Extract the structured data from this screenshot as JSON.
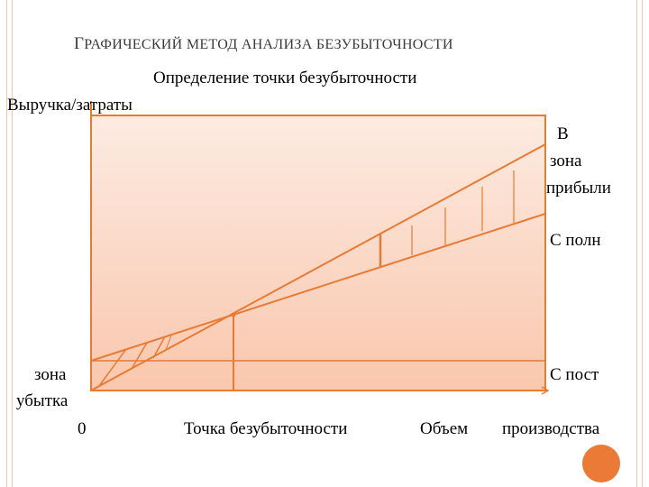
{
  "header": {
    "title": "Графический метод анализа безубыточности",
    "subtitle": "Определение точки безубыточности"
  },
  "labels": {
    "y_axis": "Выручка/затраты",
    "revenue_line": "В",
    "profit_zone_word": "зона",
    "profit_zone_name": "прибыли",
    "total_cost": "С полн",
    "fixed_cost": "С пост",
    "loss_zone_word": "зона",
    "loss_zone_name": "убытка",
    "origin": "0",
    "break_even_point": "Точка безубыточности",
    "x_axis_word1": "Объем",
    "x_axis_word2": "производства"
  },
  "colors": {
    "line": "#e87a33",
    "frame_fill_top": "#fdebe2",
    "frame_fill_bottom": "#f9c7ad",
    "accent_circle": "#ea7a35"
  }
}
